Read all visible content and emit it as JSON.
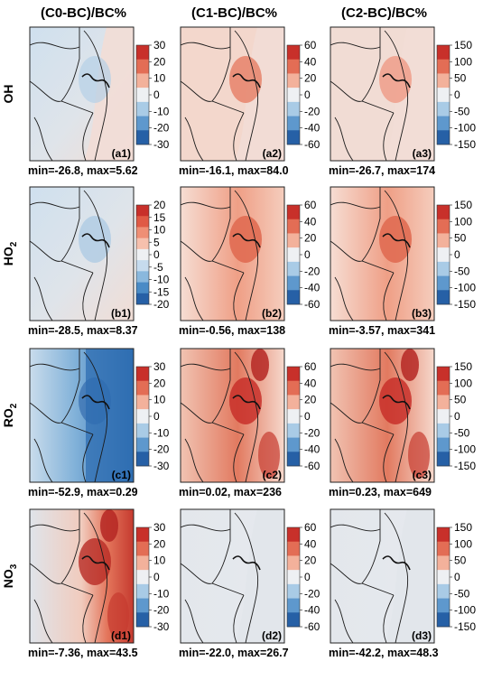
{
  "column_titles": [
    "(C0-BC)/BC%",
    "(C1-BC)/BC%",
    "(C2-BC)/BC%"
  ],
  "row_labels": [
    {
      "base": "OH",
      "sub": ""
    },
    {
      "base": "HO",
      "sub": "2"
    },
    {
      "base": "RO",
      "sub": "2"
    },
    {
      "base": "NO",
      "sub": "3"
    }
  ],
  "colors": {
    "neg_strong": "#2b6cb0",
    "neg_mid": "#79a9d3",
    "neg_light": "#cfe0ee",
    "neutral": "#dfe4ea",
    "pos_light": "#f4cfc1",
    "pos_mid": "#e98a70",
    "pos_strong": "#c8302a",
    "border": "#1a1a1a",
    "ocean_tint": "#dfe5ea"
  },
  "chart_data": [
    {
      "type": "heatmap",
      "species": "OH",
      "scenario": "C0-BC",
      "panel_label": "(a1)",
      "stats_label": "min=-26.8, max=5.62",
      "min": -26.8,
      "max": 5.62,
      "colorbar": {
        "ticks": [
          "30",
          "20",
          "10",
          "0",
          "-10",
          "-20",
          "-30"
        ],
        "range": [
          -30,
          30
        ]
      },
      "pattern": "weak-negative-north"
    },
    {
      "type": "heatmap",
      "species": "OH",
      "scenario": "C1-BC",
      "panel_label": "(a2)",
      "stats_label": "min=-16.1, max=84.0",
      "min": -16.1,
      "max": 84.0,
      "colorbar": {
        "ticks": [
          "60",
          "40",
          "20",
          "0",
          "-20",
          "-40",
          "-60"
        ],
        "range": [
          -60,
          60
        ]
      },
      "pattern": "positive-city"
    },
    {
      "type": "heatmap",
      "species": "OH",
      "scenario": "C2-BC",
      "panel_label": "(a3)",
      "stats_label": "min=-26.7, max=174",
      "min": -26.7,
      "max": 174,
      "colorbar": {
        "ticks": [
          "150",
          "100",
          "50",
          "0",
          "-50",
          "-100",
          "-150"
        ],
        "range": [
          -150,
          150
        ]
      },
      "pattern": "positive-city-weak"
    },
    {
      "type": "heatmap",
      "species": "HO2",
      "scenario": "C0-BC",
      "panel_label": "(b1)",
      "stats_label": "min=-28.5, max=8.37",
      "min": -28.5,
      "max": 8.37,
      "colorbar": {
        "ticks": [
          "20",
          "15",
          "10",
          "5",
          "0",
          "-5",
          "-10",
          "-15",
          "-20"
        ],
        "range": [
          -20,
          20
        ]
      },
      "pattern": "negative-north"
    },
    {
      "type": "heatmap",
      "species": "HO2",
      "scenario": "C1-BC",
      "panel_label": "(b2)",
      "stats_label": "min=-0.56, max=138",
      "min": -0.56,
      "max": 138,
      "colorbar": {
        "ticks": [
          "60",
          "40",
          "20",
          "0",
          "-20",
          "-40",
          "-60"
        ],
        "range": [
          -60,
          60
        ]
      },
      "pattern": "positive-broad"
    },
    {
      "type": "heatmap",
      "species": "HO2",
      "scenario": "C2-BC",
      "panel_label": "(b3)",
      "stats_label": "min=-3.57, max=341",
      "min": -3.57,
      "max": 341,
      "colorbar": {
        "ticks": [
          "150",
          "100",
          "50",
          "0",
          "-50",
          "-100",
          "-150"
        ],
        "range": [
          -150,
          150
        ]
      },
      "pattern": "positive-broad"
    },
    {
      "type": "heatmap",
      "species": "RO2",
      "scenario": "C0-BC",
      "panel_label": "(c1)",
      "stats_label": "min=-52.9, max=0.29",
      "min": -52.9,
      "max": 0.29,
      "colorbar": {
        "ticks": [
          "30",
          "20",
          "10",
          "0",
          "-10",
          "-20",
          "-30"
        ],
        "range": [
          -30,
          30
        ]
      },
      "pattern": "strong-negative-east"
    },
    {
      "type": "heatmap",
      "species": "RO2",
      "scenario": "C1-BC",
      "panel_label": "(c2)",
      "stats_label": "min=0.02, max=236",
      "min": 0.02,
      "max": 236,
      "colorbar": {
        "ticks": [
          "60",
          "40",
          "20",
          "0",
          "-20",
          "-40",
          "-60"
        ],
        "range": [
          -60,
          60
        ]
      },
      "pattern": "strong-positive-east"
    },
    {
      "type": "heatmap",
      "species": "RO2",
      "scenario": "C2-BC",
      "panel_label": "(c3)",
      "stats_label": "min=0.23, max=649",
      "min": 0.23,
      "max": 649,
      "colorbar": {
        "ticks": [
          "150",
          "100",
          "50",
          "0",
          "-50",
          "-100",
          "-150"
        ],
        "range": [
          -150,
          150
        ]
      },
      "pattern": "strong-positive-east"
    },
    {
      "type": "heatmap",
      "species": "NO3",
      "scenario": "C0-BC",
      "panel_label": "(d1)",
      "stats_label": "min=-7.36, max=43.5",
      "min": -7.36,
      "max": 43.5,
      "colorbar": {
        "ticks": [
          "30",
          "20",
          "10",
          "0",
          "-10",
          "-20",
          "-30"
        ],
        "range": [
          -30,
          30
        ]
      },
      "pattern": "strong-positive-east-coast"
    },
    {
      "type": "heatmap",
      "species": "NO3",
      "scenario": "C1-BC",
      "panel_label": "(d2)",
      "stats_label": "min=-22.0, max=26.7",
      "min": -22.0,
      "max": 26.7,
      "colorbar": {
        "ticks": [
          "60",
          "40",
          "20",
          "0",
          "-20",
          "-40",
          "-60"
        ],
        "range": [
          -60,
          60
        ]
      },
      "pattern": "mild-mixed"
    },
    {
      "type": "heatmap",
      "species": "NO3",
      "scenario": "C2-BC",
      "panel_label": "(d3)",
      "stats_label": "min=-42.2, max=48.3",
      "min": -42.2,
      "max": 48.3,
      "colorbar": {
        "ticks": [
          "150",
          "100",
          "50",
          "0",
          "-50",
          "-100",
          "-150"
        ],
        "range": [
          -150,
          150
        ]
      },
      "pattern": "mild-mixed"
    }
  ]
}
